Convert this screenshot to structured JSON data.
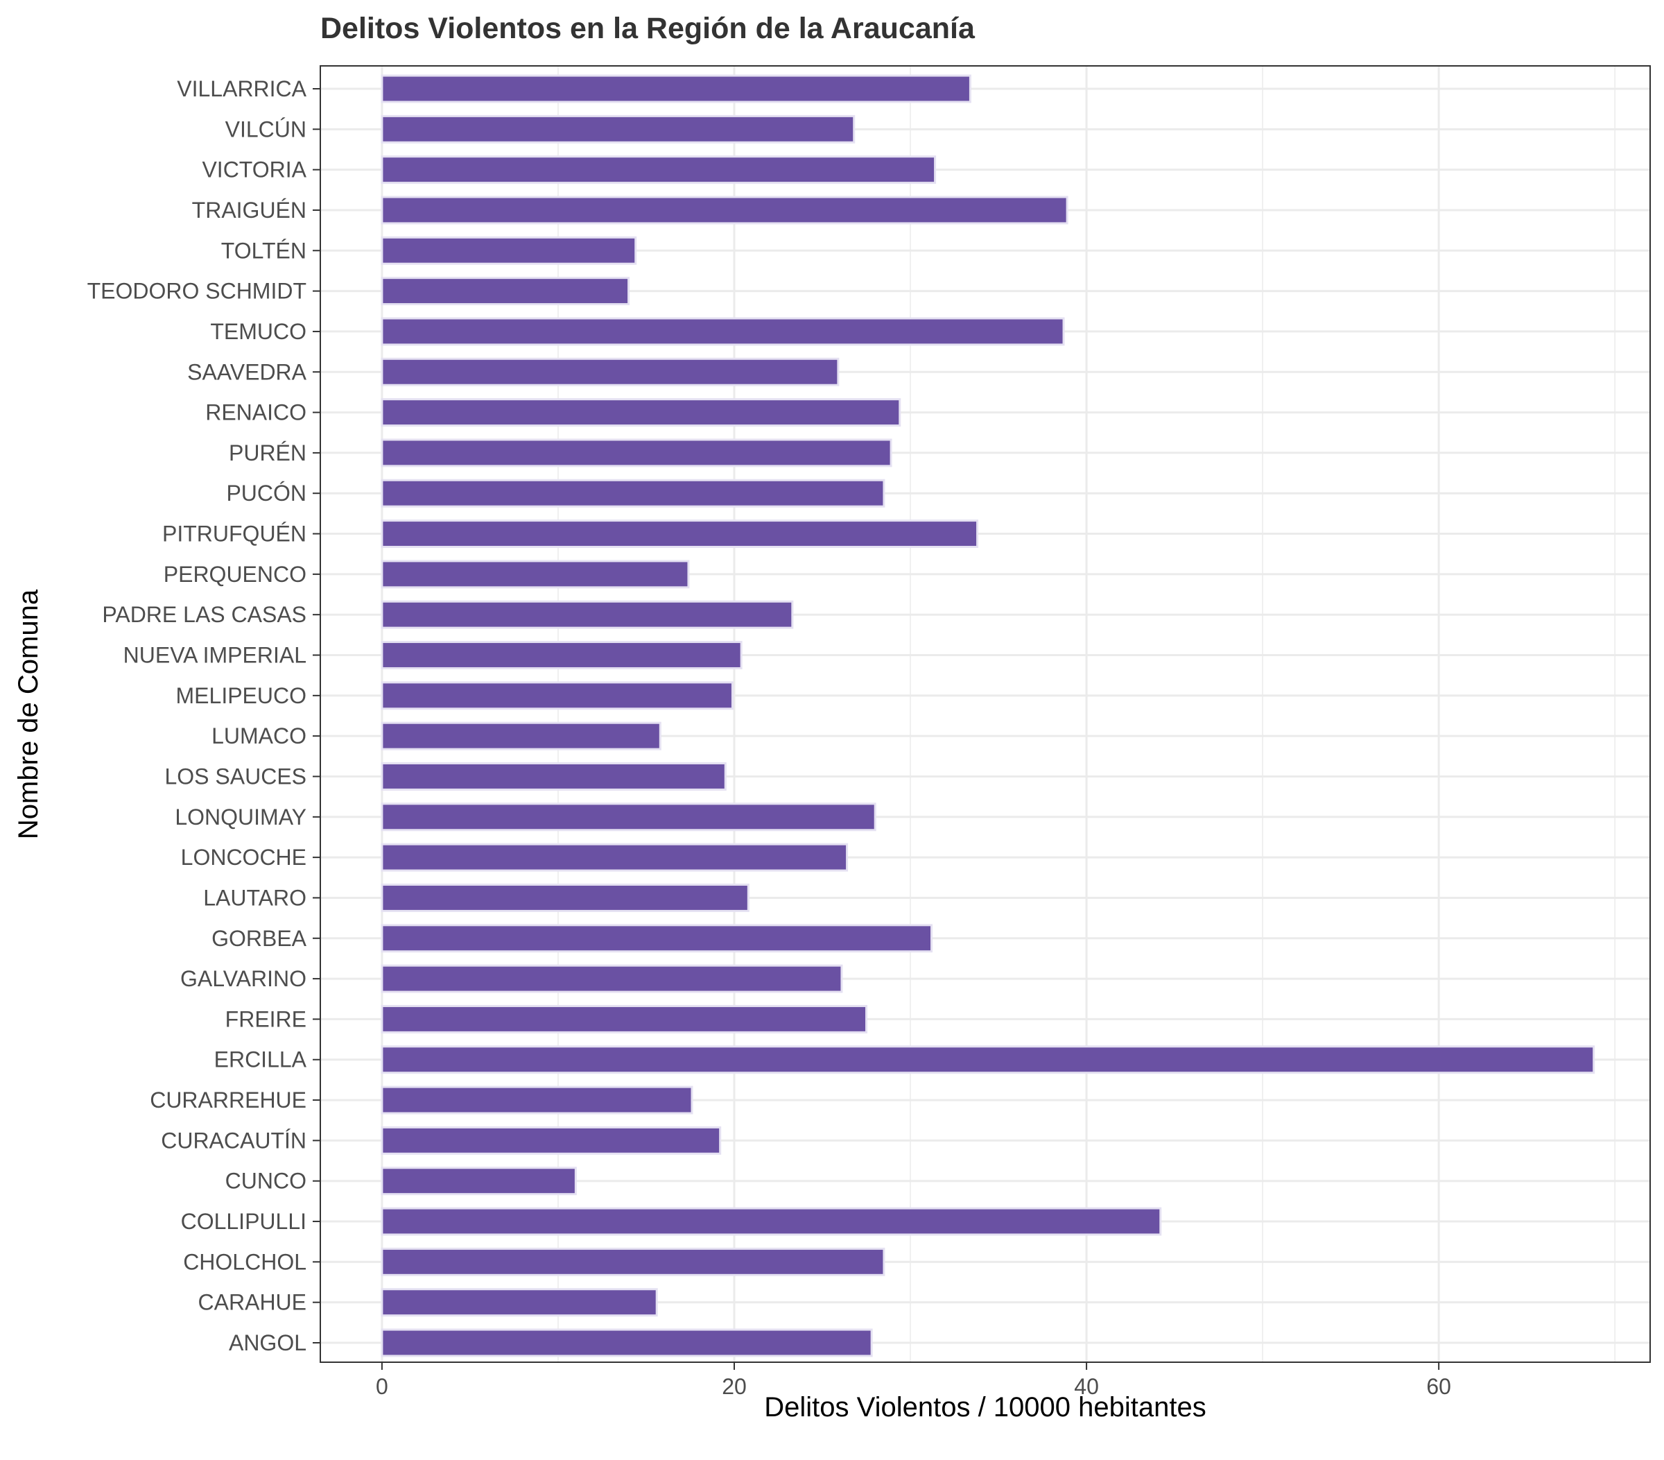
{
  "chart_data": {
    "type": "bar",
    "orientation": "horizontal",
    "title": "Delitos Violentos en la Región de la Araucanía",
    "xlabel": "Delitos Violentos / 10000 hebitantes",
    "ylabel": "Nombre de Comuna",
    "xlim": [
      -3.5,
      72
    ],
    "xticks": [
      0,
      20,
      40,
      60
    ],
    "grid": true,
    "legend": "none",
    "bar_color": "#6a51a3",
    "categories": [
      "ANGOL",
      "CARAHUE",
      "CHOLCHOL",
      "COLLIPULLI",
      "CUNCO",
      "CURACAUTÍN",
      "CURARREHUE",
      "ERCILLA",
      "FREIRE",
      "GALVARINO",
      "GORBEA",
      "LAUTARO",
      "LONCOCHE",
      "LONQUIMAY",
      "LOS SAUCES",
      "LUMACO",
      "MELIPEUCO",
      "NUEVA IMPERIAL",
      "PADRE LAS CASAS",
      "PERQUENCO",
      "PITRUFQUÉN",
      "PUCÓN",
      "PURÉN",
      "RENAICO",
      "SAAVEDRA",
      "TEMUCO",
      "TEODORO SCHMIDT",
      "TOLTÉN",
      "TRAIGUÉN",
      "VICTORIA",
      "VILCÚN",
      "VILLARRICA"
    ],
    "values": [
      27.8,
      15.6,
      28.5,
      44.2,
      11.0,
      19.2,
      17.6,
      68.8,
      27.5,
      26.1,
      31.2,
      20.8,
      26.4,
      28.0,
      19.5,
      15.8,
      19.9,
      20.4,
      23.3,
      17.4,
      33.8,
      28.5,
      28.9,
      29.4,
      25.9,
      38.7,
      14.0,
      14.4,
      38.9,
      31.4,
      26.8,
      33.4
    ]
  }
}
